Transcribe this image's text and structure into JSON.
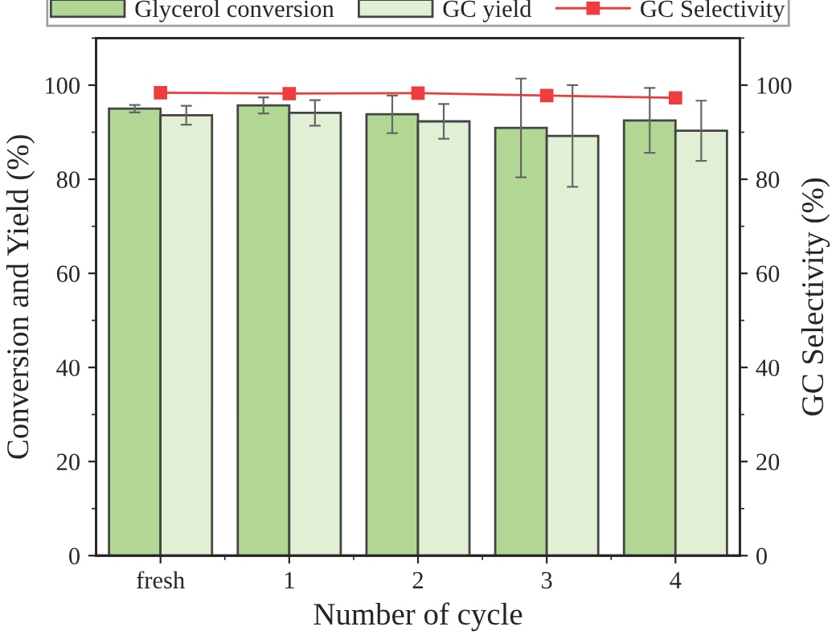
{
  "chart_data": {
    "type": "bar",
    "xlabel": "Number of cycle",
    "ylabel": "Conversion and Yield (%)",
    "y2label": "GC Selectivity (%)",
    "categories": [
      "fresh",
      "1",
      "2",
      "3",
      "4"
    ],
    "series": [
      {
        "name": "Glycerol conversion",
        "color": "#b2d694",
        "values": [
          95.0,
          95.7,
          93.8,
          90.9,
          92.5
        ],
        "errors": [
          0.8,
          1.7,
          4.0,
          10.5,
          6.9
        ]
      },
      {
        "name": "GC yield",
        "color": "#e1efd4",
        "values": [
          93.6,
          94.1,
          92.3,
          89.2,
          90.3
        ],
        "errors": [
          2.0,
          2.7,
          3.7,
          10.8,
          6.4
        ]
      },
      {
        "name": "GC Selectivity",
        "type": "line",
        "axis": "y2",
        "color": "#f03c3c",
        "marker": "square",
        "values": [
          98.4,
          98.2,
          98.3,
          97.8,
          97.3
        ]
      }
    ],
    "ylim": [
      0,
      110
    ],
    "yticks": [
      0,
      20,
      40,
      60,
      80,
      100
    ],
    "y2lim": [
      0,
      110
    ],
    "y2ticks": [
      0,
      20,
      40,
      60,
      80,
      100
    ],
    "grid": false,
    "legend": "top"
  }
}
